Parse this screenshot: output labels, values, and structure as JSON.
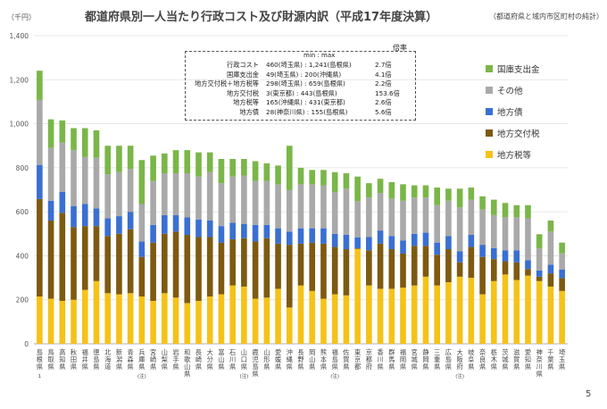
{
  "title": "都道府県別一人当たり行政コスト及び財源内訳（平成17年度決算）",
  "note": "（都道府県と域内市区町村の純計）",
  "page_number": "5",
  "stats_box": {
    "header_minmax": "min : max",
    "header_ratio": "倍率",
    "rows": [
      {
        "label": "行政コスト",
        "range": "460(埼玉県) : 1,241(島根県)",
        "ratio": "2.7倍"
      },
      {
        "label": "国庫支出金",
        "range": "49(埼玉県) : 200(沖縄県)",
        "ratio": "4.1倍"
      },
      {
        "label": "地方交付税＋地方税等",
        "range": "298(埼玉県) : 659(島根県)",
        "ratio": "2.2倍"
      },
      {
        "label": "地方交付税",
        "range": "3(東京都) : 443(島根県)",
        "ratio": "153.6倍"
      },
      {
        "label": "地方税等",
        "range": "165(沖縄県) : 431(東京都)",
        "ratio": "2.6倍"
      },
      {
        "label": "地方債",
        "range": "28(神奈川県) : 155(島根県)",
        "ratio": "5.6倍"
      }
    ]
  },
  "chart_data": {
    "type": "bar",
    "stacked": true,
    "ylabel": "（千円）",
    "ylim": [
      0,
      1400
    ],
    "yticks": [
      0,
      200,
      400,
      600,
      800,
      1000,
      1200,
      1400
    ],
    "tick_labels": [
      "0",
      "200",
      "400",
      "600",
      "800",
      "1,000",
      "1,200",
      "1,400"
    ],
    "legend_position": "right",
    "categories": [
      "島根県",
      "鳥取県",
      "高知県",
      "秋田県",
      "福井県",
      "徳島県",
      "北海道",
      "新潟県",
      "青森県",
      "兵庫県",
      "宮崎県",
      "山梨県",
      "岩手県",
      "和歌山県",
      "長崎県",
      "大分県",
      "富山県",
      "石川県",
      "山口県",
      "鹿児島県",
      "山形県",
      "愛媛県",
      "沖縄県",
      "長野県",
      "岡山県",
      "熊本県",
      "福島県",
      "佐賀県",
      "東京都",
      "京都府",
      "香川県",
      "群馬県",
      "福岡県",
      "宮城県",
      "静岡県",
      "三重県",
      "広島県",
      "大阪府",
      "岐阜県",
      "奈良県",
      "栃木県",
      "茨城県",
      "滋賀県",
      "愛知県",
      "神奈川県",
      "千葉県",
      "埼玉県"
    ],
    "category_notes": {
      "島根県": "1",
      "兵庫県": "(注)",
      "山口県": "(注)",
      "福島県": "(注)",
      "大阪府": "(注)"
    },
    "series": [
      {
        "name": "地方税等",
        "color": "#f5c218",
        "values": [
          215,
          205,
          195,
          200,
          245,
          285,
          230,
          225,
          230,
          215,
          195,
          230,
          210,
          185,
          195,
          215,
          225,
          265,
          260,
          205,
          210,
          250,
          165,
          265,
          240,
          205,
          225,
          220,
          431,
          265,
          250,
          250,
          255,
          265,
          305,
          265,
          280,
          305,
          300,
          225,
          285,
          315,
          290,
          310,
          285,
          260,
          240
        ]
      },
      {
        "name": "地方交付税",
        "color": "#7d5a10",
        "values": [
          443,
          355,
          400,
          330,
          290,
          250,
          260,
          275,
          290,
          180,
          265,
          270,
          300,
          310,
          290,
          270,
          235,
          210,
          220,
          260,
          270,
          205,
          285,
          190,
          220,
          250,
          215,
          210,
          3,
          160,
          205,
          180,
          155,
          180,
          140,
          140,
          150,
          65,
          140,
          170,
          100,
          60,
          80,
          30,
          20,
          60,
          58
        ]
      },
      {
        "name": "地方債",
        "color": "#3a6fd2",
        "values": [
          155,
          90,
          95,
          95,
          100,
          80,
          80,
          80,
          80,
          70,
          80,
          85,
          75,
          80,
          80,
          75,
          75,
          75,
          65,
          75,
          60,
          70,
          60,
          70,
          65,
          70,
          60,
          65,
          50,
          60,
          60,
          60,
          60,
          55,
          60,
          55,
          60,
          50,
          55,
          55,
          50,
          50,
          55,
          40,
          28,
          40,
          40
        ]
      },
      {
        "name": "その他",
        "color": "#a9a9a9",
        "values": [
          295,
          240,
          225,
          255,
          215,
          230,
          200,
          200,
          195,
          170,
          200,
          190,
          190,
          200,
          195,
          220,
          195,
          210,
          220,
          200,
          200,
          200,
          190,
          200,
          200,
          195,
          190,
          210,
          165,
          180,
          170,
          170,
          180,
          165,
          160,
          170,
          160,
          200,
          160,
          160,
          150,
          150,
          150,
          190,
          100,
          150,
          73
        ]
      },
      {
        "name": "国庫支出金",
        "color": "#7ab648",
        "values": [
          133,
          130,
          100,
          100,
          130,
          125,
          130,
          120,
          105,
          200,
          115,
          90,
          105,
          105,
          110,
          90,
          110,
          80,
          75,
          90,
          80,
          85,
          200,
          75,
          65,
          70,
          90,
          70,
          111,
          65,
          65,
          75,
          75,
          55,
          55,
          80,
          55,
          85,
          55,
          60,
          70,
          65,
          55,
          60,
          65,
          50,
          49
        ]
      }
    ]
  }
}
